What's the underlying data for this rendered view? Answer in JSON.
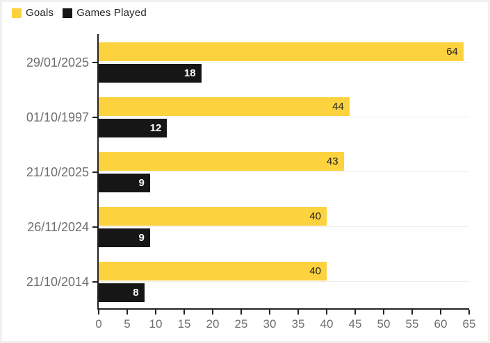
{
  "page": {
    "background": "#ffffff",
    "border_color": "#f0f0f0"
  },
  "legend": {
    "position": "top-left",
    "items": [
      {
        "label": "Goals",
        "color": "#fcd23e"
      },
      {
        "label": "Games Played",
        "color": "#161616"
      }
    ]
  },
  "chart_data": {
    "type": "bar",
    "orientation": "horizontal",
    "title": "",
    "xlabel": "",
    "ylabel": "",
    "categories": [
      "29/01/2025",
      "01/10/1997",
      "21/10/2025",
      "26/11/2024",
      "21/10/2014"
    ],
    "series": [
      {
        "name": "Goals",
        "color": "#fcd23e",
        "value_label_color": "#222222",
        "values": [
          64,
          44,
          43,
          40,
          40
        ]
      },
      {
        "name": "Games Played",
        "color": "#161616",
        "value_label_color": "#ffffff",
        "values": [
          18,
          12,
          9,
          9,
          8
        ]
      }
    ],
    "xlim": [
      0,
      65
    ],
    "x_ticks": [
      0,
      5,
      10,
      15,
      20,
      25,
      30,
      35,
      40,
      45,
      50,
      55,
      60,
      65
    ],
    "grid": "horizontal-category-center-lines",
    "grid_color": "#ececec",
    "axis_color": "#222222",
    "tick_label_color": "#6e6e6e",
    "legend_position": "top-left"
  }
}
